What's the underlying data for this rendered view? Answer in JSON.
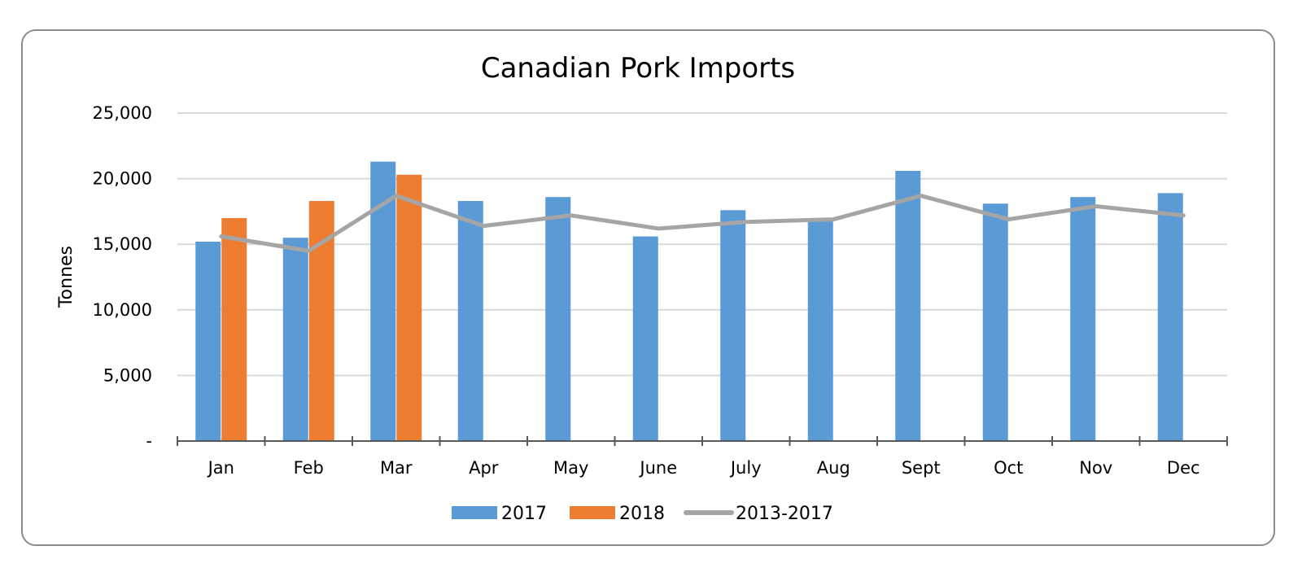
{
  "chart_data": {
    "type": "bar",
    "title": "Canadian Pork Imports",
    "xlabel": "",
    "ylabel": "Tonnes",
    "ylim": [
      0,
      25000
    ],
    "yticks": [
      0,
      5000,
      10000,
      15000,
      20000,
      25000
    ],
    "ytick_labels": [
      "-",
      "5,000",
      "10,000",
      "15,000",
      "20,000",
      "25,000"
    ],
    "grid": true,
    "legend_position": "bottom",
    "categories": [
      "Jan",
      "Feb",
      "Mar",
      "Apr",
      "May",
      "June",
      "July",
      "Aug",
      "Sept",
      "Oct",
      "Nov",
      "Dec"
    ],
    "series": [
      {
        "name": "2017",
        "type": "bar",
        "color": "#5b9bd5",
        "values": [
          15200,
          15500,
          21300,
          18300,
          18600,
          15600,
          17600,
          17000,
          20600,
          18100,
          18600,
          18900
        ]
      },
      {
        "name": "2018",
        "type": "bar",
        "color": "#ed7d31",
        "values": [
          17000,
          18300,
          20300,
          null,
          null,
          null,
          null,
          null,
          null,
          null,
          null,
          null
        ]
      },
      {
        "name": "2013-2017",
        "type": "line",
        "color": "#a5a5a5",
        "values": [
          15600,
          14500,
          18700,
          16400,
          17200,
          16200,
          16700,
          16900,
          18700,
          16900,
          17900,
          17200
        ]
      }
    ]
  }
}
